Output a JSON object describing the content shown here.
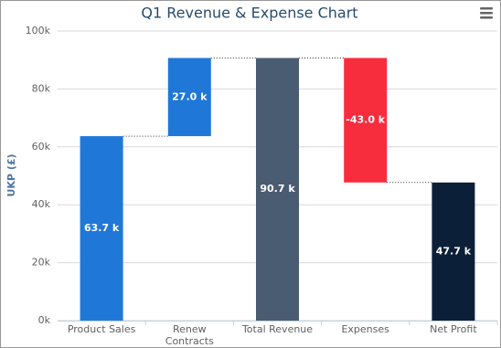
{
  "chart_data": {
    "type": "waterfall",
    "title": "Q1 Revenue & Expense Chart",
    "y_label": "UKP (£)",
    "categories": [
      "Product Sales",
      "Renew Contracts",
      "Total Revenue",
      "Expenses",
      "Net Profit"
    ],
    "values": [
      63700,
      27000,
      90700,
      -43000,
      47700
    ],
    "value_labels": [
      "63.7 k",
      "27.0 k",
      "90.7 k",
      "-43.0 k",
      "47.7 k"
    ],
    "point_types": [
      "step",
      "step",
      "total",
      "step",
      "total"
    ],
    "colors": [
      "#1f78d8",
      "#1f78d8",
      "#4a5c72",
      "#f72d3e",
      "#0c1f38"
    ],
    "ylim": [
      0,
      100000
    ],
    "yticks": [
      {
        "value": 0,
        "label": "0k"
      },
      {
        "value": 20000,
        "label": "20k"
      },
      {
        "value": 40000,
        "label": "40k"
      },
      {
        "value": 60000,
        "label": "60k"
      },
      {
        "value": 80000,
        "label": "80k"
      },
      {
        "value": 100000,
        "label": "100k"
      }
    ],
    "grid": true
  }
}
